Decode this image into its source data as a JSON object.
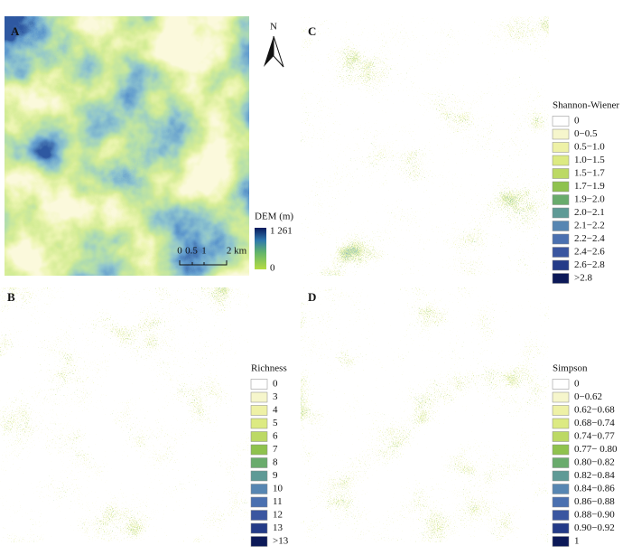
{
  "panels": [
    {
      "label": "A"
    },
    {
      "label": "B"
    },
    {
      "label": "C"
    },
    {
      "label": "D"
    }
  ],
  "north": "N",
  "dem_legend": {
    "title": "DEM (m)",
    "max": "1 261",
    "min": "0"
  },
  "scale_bar": {
    "labels": [
      "0",
      "0.5",
      "1",
      "2 km"
    ]
  },
  "legends": [
    {
      "title": "Shannon-Wiener",
      "items": [
        "0",
        "0−0.5",
        "0.5−1.0",
        "1.0−1.5",
        "1.5−1.7",
        "1.7−1.9",
        "1.9−2.0",
        "2.0−2.1",
        "2.1−2.2",
        "2.2−2.4",
        "2.4−2.6",
        "2.6−2.8",
        ">2.8"
      ]
    },
    {
      "title": "Richness",
      "items": [
        "0",
        "3",
        "4",
        "5",
        "6",
        "7",
        "8",
        "9",
        "10",
        "11",
        "12",
        "13",
        ">13"
      ]
    },
    {
      "title": "Simpson",
      "items": [
        "0",
        "0−0.62",
        "0.62−0.68",
        "0.68−0.74",
        "0.74−0.77",
        "0.77− 0.80",
        "0.80−0.82",
        "0.82−0.84",
        "0.84−0.86",
        "0.86−0.88",
        "0.88−0.90",
        "0.90−0.92",
        "1"
      ]
    }
  ],
  "legend_colors": [
    "#ffffff",
    "#f6f6cc",
    "#eef1a6",
    "#dcea82",
    "#bcd964",
    "#8fc24e",
    "#69ab6c",
    "#5f9a96",
    "#5786b2",
    "#4a70b0",
    "#3a56a0",
    "#243b88",
    "#0c1958"
  ]
}
